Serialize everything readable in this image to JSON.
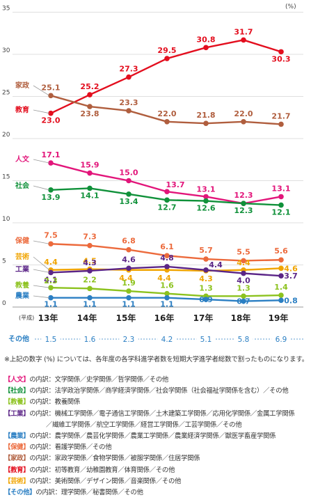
{
  "chart_data": {
    "type": "line",
    "unit_label": "(%)",
    "x_prefix": "(平成)",
    "x": [
      "13年",
      "14年",
      "15年",
      "16年",
      "17年",
      "18年",
      "19年"
    ],
    "yticks": [
      "0",
      "5",
      "10",
      "15",
      "20",
      "25",
      "30",
      "35"
    ],
    "ylim": [
      0,
      35
    ],
    "grid": true,
    "series": [
      {
        "name": "教育",
        "color": "#e30e1e",
        "values": [
          23.0,
          25.2,
          27.3,
          29.5,
          30.8,
          31.7,
          30.3
        ]
      },
      {
        "name": "家政",
        "color": "#b05e3e",
        "values": [
          25.1,
          23.8,
          23.3,
          22.0,
          21.8,
          22.0,
          21.7
        ]
      },
      {
        "name": "人文",
        "color": "#e2157a",
        "values": [
          17.1,
          15.9,
          15.0,
          13.7,
          13.1,
          12.3,
          13.1
        ]
      },
      {
        "name": "社会",
        "color": "#10913a",
        "values": [
          13.9,
          14.1,
          13.4,
          12.7,
          12.6,
          12.3,
          12.1
        ]
      },
      {
        "name": "保健",
        "color": "#ec6a3c",
        "values": [
          7.5,
          7.3,
          6.8,
          6.1,
          5.7,
          5.5,
          5.6
        ]
      },
      {
        "name": "芸術",
        "color": "#f0a400",
        "values": [
          4.4,
          4.5,
          4.4,
          4.4,
          4.3,
          4.4,
          4.6
        ]
      },
      {
        "name": "工業",
        "color": "#5b2587",
        "values": [
          4.1,
          4.3,
          4.6,
          4.8,
          4.4,
          4.0,
          3.7
        ]
      },
      {
        "name": "教養",
        "color": "#8cc21e",
        "values": [
          2.3,
          2.2,
          1.9,
          1.6,
          1.3,
          1.3,
          1.4
        ]
      },
      {
        "name": "農業",
        "color": "#2b7fc3",
        "values": [
          1.1,
          1.1,
          1.1,
          1.1,
          0.9,
          0.7,
          0.8
        ]
      }
    ],
    "other": {
      "name": "その他",
      "values": [
        "1.5",
        "1.6",
        "2.3",
        "4.2",
        "5.1",
        "5.8",
        "6.9"
      ]
    }
  },
  "footnote": "※上記の数字 (%) については、各年度の各学科進学者数を短期大学進学者総数で割ったものになります。",
  "legend": [
    {
      "cat": "【人文】",
      "color": "#e2157a",
      "text": "の内訳：文学関係／史学関係／哲学関係／その他"
    },
    {
      "cat": "【社会】",
      "color": "#10913a",
      "text": "の内訳：法学政治学関係／商学経済学関係／社会学関係（社会福祉学関係を含む）／その他"
    },
    {
      "cat": "【教養】",
      "color": "#8cc21e",
      "text": "の内訳：教養関係"
    },
    {
      "cat": "【工業】",
      "color": "#5b2587",
      "text": "の内訳：機械工学関係／電子通信工学関係／土木建築工学関係／応用化学関係／金属工学関係",
      "cont": "／繊維工学関係／航空工学関係／経営工学関係／工芸学関係／その他"
    },
    {
      "cat": "【農業】",
      "color": "#2b7fc3",
      "text": "の内訳：農学関係／農芸化学関係／農業工学関係／農業経済学関係／獣医学畜産学関係"
    },
    {
      "cat": "【保健】",
      "color": "#ec6a3c",
      "text": "の内訳：看護学関係／その他"
    },
    {
      "cat": "【家政】",
      "color": "#b05e3e",
      "text": "の内訳：家政学関係／食物学関係／被服学関係／住居学関係"
    },
    {
      "cat": "【教育】",
      "color": "#e30e1e",
      "text": "の内訳：初等教育／幼稚園教育／体育関係／その他"
    },
    {
      "cat": "【芸術】",
      "color": "#f0a400",
      "text": "の内訳：美術関係／デザイン関係／音楽関係／その他"
    },
    {
      "cat": "【その他】",
      "color": "#2b7fc3",
      "text": "の内訳：理学関係／秘書関係／その他"
    }
  ]
}
